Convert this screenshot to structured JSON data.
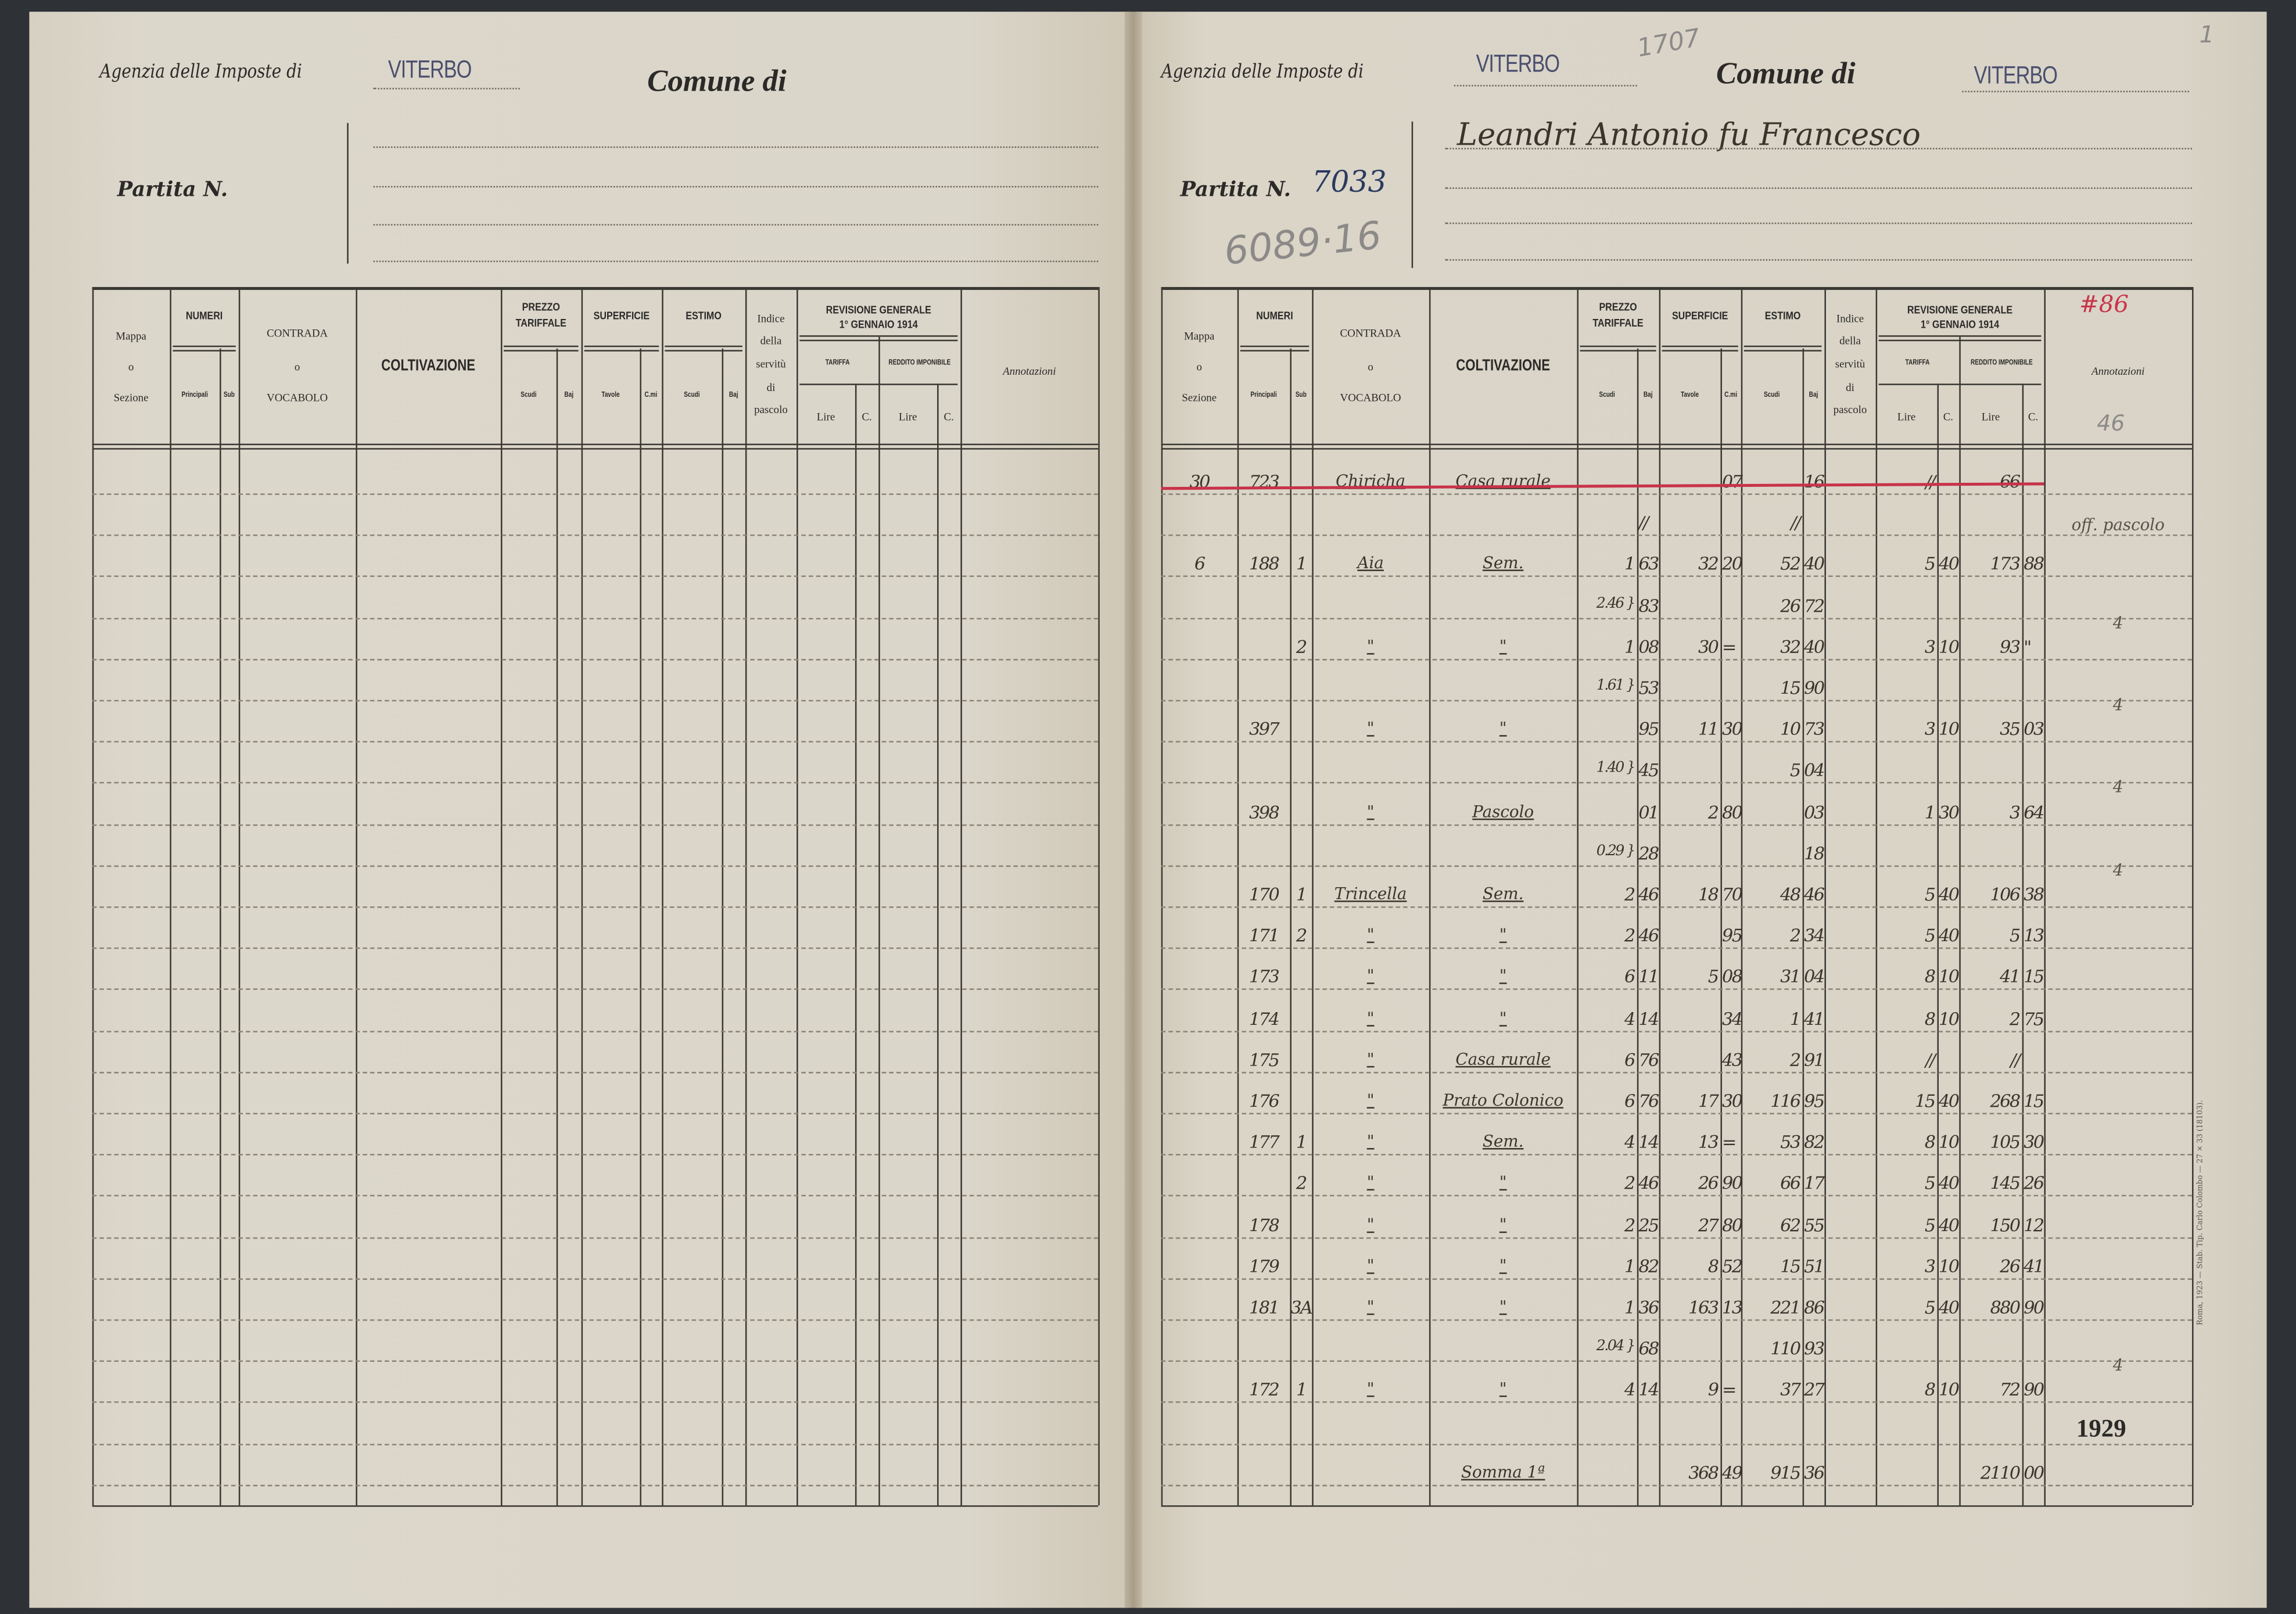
{
  "left_page": {
    "agency_label": "Agenzia delle Imposte di",
    "agency_stamp": "VITERBO",
    "comune_label": "Comune di",
    "partita_label": "Partita N."
  },
  "right_page": {
    "agency_label": "Agenzia delle Imposte di",
    "agency_stamp": "VITERBO",
    "pencil_number_top": "1707",
    "comune_label": "Comune di",
    "comune_stamp": "VITERBO",
    "corner_number": "1",
    "owner_name": "Leandri Antonio fu Francesco",
    "partita_label": "Partita N.",
    "partita_number": "7033",
    "pencil_number": "6089·16",
    "red_note": "#86",
    "annot_note": "46",
    "year_stamp": "1929",
    "printer_imprint": "Roma, 1923 — Stab. Tip. Carlo Colombo — 27 × 33 (18103)."
  },
  "table_header": {
    "mappa": [
      "Mappa",
      "o",
      "Sezione"
    ],
    "numeri": "NUMERI",
    "principali": "Principali",
    "sub": "Sub",
    "contrada": [
      "CONTRADA",
      "o",
      "VOCABOLO"
    ],
    "coltivazione": "COLTIVAZIONE",
    "prezzo": [
      "PREZZO",
      "TARIFFALE"
    ],
    "superficie": "SUPERFICIE",
    "estimo": "ESTIMO",
    "scudi": "Scudi",
    "baj": "Baj",
    "tavole": "Tavole",
    "cmi": "C.mi",
    "indice": [
      "Indice",
      "della",
      "servitù",
      "di",
      "pascolo"
    ],
    "revisione": [
      "REVISIONE GENERALE",
      "1° GENNAIO 1914"
    ],
    "tariffa": "TARIFFA",
    "reddito": "REDDITO IMPONIBILE",
    "lire": "Lire",
    "c": "C.",
    "annotazioni": "Annotazioni"
  },
  "colors": {
    "paper": "#dbd6ca",
    "ink": "#2b2a28",
    "strike_red": "#c8334a",
    "stamp_violet": "#4a4f6e"
  },
  "rows": [
    {
      "mappa": "30",
      "principali": "723",
      "contrada": "Chiricha",
      "coltivazione": "Casa rurale",
      "sup_cmi": "07",
      "estimo_baj": "16",
      "tariffa_lire": "//",
      "reddito_lire": "66",
      "struck": true
    },
    {
      "prezzo_baj": "//",
      "estimo_scudi": "//",
      "annotazioni": "off. pascolo"
    },
    {
      "mappa": "6",
      "principali": "188",
      "sub": "1",
      "contrada": "Aia",
      "coltivazione": "Sem.",
      "prezzo_scudi": "1",
      "prezzo_baj": "63",
      "sup_tavole": "32",
      "sup_cmi": "20",
      "estimo_scudi": "52",
      "estimo_baj": "40",
      "tariffa_lire": "5",
      "tariffa_c": "40",
      "reddito_lire": "173",
      "reddito_c": "88"
    },
    {
      "prezzo_scudi": "2.46 }",
      "prezzo_baj": "83",
      "estimo_scudi": "26",
      "estimo_baj": "72",
      "annotazioni": "4"
    },
    {
      "sub": "2",
      "contrada": "\"",
      "coltivazione": "\"",
      "prezzo_scudi": "1",
      "prezzo_baj": "08",
      "sup_tavole": "30",
      "sup_cmi": "=",
      "estimo_scudi": "32",
      "estimo_baj": "40",
      "tariffa_lire": "3",
      "tariffa_c": "10",
      "reddito_lire": "93",
      "reddito_c": "\""
    },
    {
      "prezzo_scudi": "1.61 }",
      "prezzo_baj": "53",
      "estimo_scudi": "15",
      "estimo_baj": "90",
      "annotazioni": "4"
    },
    {
      "principali": "397",
      "contrada": "\"",
      "coltivazione": "\"",
      "prezzo_baj": "95",
      "sup_tavole": "11",
      "sup_cmi": "30",
      "estimo_scudi": "10",
      "estimo_baj": "73",
      "tariffa_lire": "3",
      "tariffa_c": "10",
      "reddito_lire": "35",
      "reddito_c": "03"
    },
    {
      "prezzo_scudi": "1.40 }",
      "prezzo_baj": "45",
      "estimo_scudi": "5",
      "estimo_baj": "04",
      "annotazioni": "4"
    },
    {
      "principali": "398",
      "contrada": "\"",
      "coltivazione": "Pascolo",
      "prezzo_baj": "01",
      "sup_tavole": "2",
      "sup_cmi": "80",
      "estimo_baj": "03",
      "tariffa_lire": "1",
      "tariffa_c": "30",
      "reddito_lire": "3",
      "reddito_c": "64"
    },
    {
      "prezzo_scudi": "0.29 }",
      "prezzo_baj": "28",
      "estimo_baj": "18",
      "annotazioni": "4"
    },
    {
      "principali": "170",
      "sub": "1",
      "contrada": "Trincella",
      "coltivazione": "Sem.",
      "prezzo_scudi": "2",
      "prezzo_baj": "46",
      "sup_tavole": "18",
      "sup_cmi": "70",
      "estimo_scudi": "48",
      "estimo_baj": "46",
      "tariffa_lire": "5",
      "tariffa_c": "40",
      "reddito_lire": "106",
      "reddito_c": "38"
    },
    {
      "principali": "171",
      "sub": "2",
      "contrada": "\"",
      "coltivazione": "\"",
      "prezzo_scudi": "2",
      "prezzo_baj": "46",
      "sup_cmi": "95",
      "estimo_scudi": "2",
      "estimo_baj": "34",
      "tariffa_lire": "5",
      "tariffa_c": "40",
      "reddito_lire": "5",
      "reddito_c": "13"
    },
    {
      "principali": "173",
      "contrada": "\"",
      "coltivazione": "\"",
      "prezzo_scudi": "6",
      "prezzo_baj": "11",
      "sup_tavole": "5",
      "sup_cmi": "08",
      "estimo_scudi": "31",
      "estimo_baj": "04",
      "tariffa_lire": "8",
      "tariffa_c": "10",
      "reddito_lire": "41",
      "reddito_c": "15"
    },
    {
      "principali": "174",
      "contrada": "\"",
      "coltivazione": "\"",
      "prezzo_scudi": "4",
      "prezzo_baj": "14",
      "sup_cmi": "34",
      "estimo_scudi": "1",
      "estimo_baj": "41",
      "tariffa_lire": "8",
      "tariffa_c": "10",
      "reddito_lire": "2",
      "reddito_c": "75"
    },
    {
      "principali": "175",
      "contrada": "\"",
      "coltivazione": "Casa rurale",
      "prezzo_scudi": "6",
      "prezzo_baj": "76",
      "sup_cmi": "43",
      "estimo_scudi": "2",
      "estimo_baj": "91",
      "tariffa_lire": "//",
      "reddito_lire": "//"
    },
    {
      "principali": "176",
      "contrada": "\"",
      "coltivazione": "Prato Colonico",
      "prezzo_scudi": "6",
      "prezzo_baj": "76",
      "sup_tavole": "17",
      "sup_cmi": "30",
      "estimo_scudi": "116",
      "estimo_baj": "95",
      "tariffa_lire": "15",
      "tariffa_c": "40",
      "reddito_lire": "268",
      "reddito_c": "15"
    },
    {
      "principali": "177",
      "sub": "1",
      "contrada": "\"",
      "coltivazione": "Sem.",
      "prezzo_scudi": "4",
      "prezzo_baj": "14",
      "sup_tavole": "13",
      "sup_cmi": "=",
      "estimo_scudi": "53",
      "estimo_baj": "82",
      "tariffa_lire": "8",
      "tariffa_c": "10",
      "reddito_lire": "105",
      "reddito_c": "30"
    },
    {
      "sub": "2",
      "contrada": "\"",
      "coltivazione": "\"",
      "prezzo_scudi": "2",
      "prezzo_baj": "46",
      "sup_tavole": "26",
      "sup_cmi": "90",
      "estimo_scudi": "66",
      "estimo_baj": "17",
      "tariffa_lire": "5",
      "tariffa_c": "40",
      "reddito_lire": "145",
      "reddito_c": "26"
    },
    {
      "principali": "178",
      "contrada": "\"",
      "coltivazione": "\"",
      "prezzo_scudi": "2",
      "prezzo_baj": "25",
      "sup_tavole": "27",
      "sup_cmi": "80",
      "estimo_scudi": "62",
      "estimo_baj": "55",
      "tariffa_lire": "5",
      "tariffa_c": "40",
      "reddito_lire": "150",
      "reddito_c": "12"
    },
    {
      "principali": "179",
      "contrada": "\"",
      "coltivazione": "\"",
      "prezzo_scudi": "1",
      "prezzo_baj": "82",
      "sup_tavole": "8",
      "sup_cmi": "52",
      "estimo_scudi": "15",
      "estimo_baj": "51",
      "tariffa_lire": "3",
      "tariffa_c": "10",
      "reddito_lire": "26",
      "reddito_c": "41"
    },
    {
      "principali": "181",
      "sub": "3A",
      "contrada": "\"",
      "coltivazione": "\"",
      "prezzo_scudi": "1",
      "prezzo_baj": "36",
      "sup_tavole": "163",
      "sup_cmi": "13",
      "estimo_scudi": "221",
      "estimo_baj": "86",
      "tariffa_lire": "5",
      "tariffa_c": "40",
      "reddito_lire": "880",
      "reddito_c": "90"
    },
    {
      "prezzo_scudi": "2.04 }",
      "prezzo_baj": "68",
      "estimo_scudi": "110",
      "estimo_baj": "93",
      "annotazioni": "4"
    },
    {
      "principali": "172",
      "sub": "1",
      "contrada": "\"",
      "coltivazione": "\"",
      "prezzo_scudi": "4",
      "prezzo_baj": "14",
      "sup_tavole": "9",
      "sup_cmi": "=",
      "estimo_scudi": "37",
      "estimo_baj": "27",
      "tariffa_lire": "8",
      "tariffa_c": "10",
      "reddito_lire": "72",
      "reddito_c": "90"
    },
    {},
    {
      "coltivazione": "Somma 1ª",
      "sup_tavole": "368",
      "sup_cmi": "49",
      "estimo_scudi": "915",
      "estimo_baj": "36",
      "reddito_lire": "2110",
      "reddito_c": "00"
    }
  ]
}
